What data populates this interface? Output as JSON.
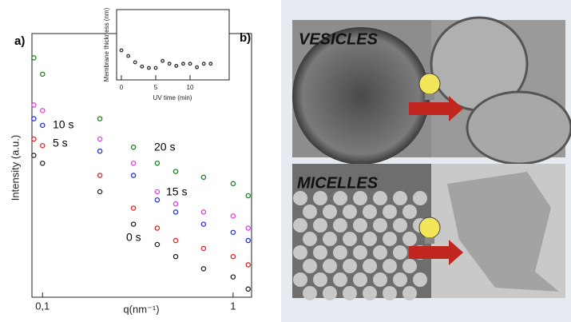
{
  "chart_data": [
    {
      "type": "scatter",
      "panel": "a)",
      "xlabel": "q(nm⁻¹)",
      "ylabel": "Intensity (a.u.)",
      "xlog": true,
      "xlim": [
        0.088,
        1.25
      ],
      "xticks": [
        {
          "value": 0.1,
          "label": "0,1"
        },
        1
      ],
      "ylim": [
        0,
        100
      ],
      "x": [
        0.09,
        0.1,
        0.2,
        0.3,
        0.4,
        0.5,
        0.7,
        1,
        1.2
      ],
      "series": [
        {
          "name": "20 s",
          "color": "#1d7f1d",
          "values": [
            90.8,
            84.6,
            67.7,
            56.9,
            50.8,
            47.7,
            45.5,
            43.1,
            38.5
          ]
        },
        {
          "name": "15 s",
          "color": "#e23ee2",
          "values": [
            72.9,
            70.8,
            60.0,
            50.8,
            40.0,
            35.4,
            32.3,
            30.8,
            26.2
          ]
        },
        {
          "name": "10 s",
          "color": "#2233e0",
          "values": [
            67.7,
            65.2,
            55.4,
            46.2,
            36.9,
            32.3,
            27.7,
            24.6,
            21.5
          ]
        },
        {
          "name": "5 s",
          "color": "#e02222",
          "values": [
            60.0,
            57.5,
            46.2,
            33.8,
            26.2,
            21.5,
            18.5,
            15.4,
            12.3
          ]
        },
        {
          "name": "0 s",
          "color": "#222222",
          "values": [
            53.8,
            50.8,
            40.0,
            27.7,
            20.0,
            15.4,
            10.8,
            7.7,
            3.1
          ]
        }
      ]
    },
    {
      "type": "scatter",
      "xlabel": "UV time (min)",
      "ylabel": "Membrane thickness (nm)",
      "xlim": [
        -0.7,
        15.7
      ],
      "xticks": [
        0,
        5,
        10
      ],
      "ylim": [
        0,
        10
      ],
      "x": [
        0,
        1,
        2,
        3,
        4,
        5,
        6,
        7,
        8,
        9,
        10,
        11,
        12,
        13
      ],
      "series": [
        {
          "color": "#333333",
          "values": [
            4.2,
            3.4,
            2.5,
            1.9,
            1.7,
            1.7,
            2.7,
            2.3,
            2.0,
            2.3,
            2.3,
            1.8,
            2.3,
            2.3
          ]
        }
      ]
    }
  ],
  "panels": {
    "b_label": "b)",
    "top": "VESICLES",
    "bottom": "MICELLES"
  }
}
